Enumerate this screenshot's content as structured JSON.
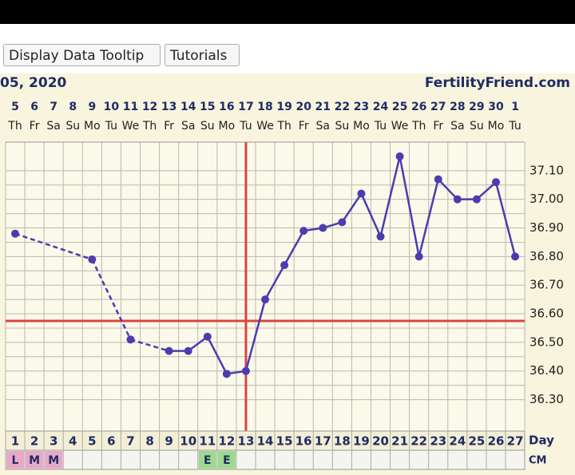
{
  "buttons": [
    "Display Data Tooltip",
    "Tutorials"
  ],
  "chart_data": {
    "type": "line",
    "title": "05, 2020",
    "site": "FertilityFriend.com",
    "dates": [
      "5",
      "6",
      "7",
      "8",
      "9",
      "10",
      "11",
      "12",
      "13",
      "14",
      "15",
      "16",
      "17",
      "18",
      "19",
      "20",
      "21",
      "22",
      "23",
      "24",
      "25",
      "26",
      "27",
      "28",
      "29",
      "30",
      "1"
    ],
    "weekdays": [
      "Th",
      "Fr",
      "Sa",
      "Su",
      "Mo",
      "Tu",
      "We",
      "Th",
      "Fr",
      "Sa",
      "Su",
      "Mo",
      "Tu",
      "We",
      "Th",
      "Fr",
      "Sa",
      "Su",
      "Mo",
      "Tu",
      "We",
      "Th",
      "Fr",
      "Sa",
      "Su",
      "Mo",
      "Tu"
    ],
    "categories": [
      "1",
      "2",
      "3",
      "4",
      "5",
      "6",
      "7",
      "8",
      "9",
      "10",
      "11",
      "12",
      "13",
      "14",
      "15",
      "16",
      "17",
      "18",
      "19",
      "20",
      "21",
      "22",
      "23",
      "24",
      "25",
      "26",
      "27"
    ],
    "values": [
      36.88,
      null,
      null,
      null,
      36.79,
      null,
      36.51,
      null,
      36.47,
      36.47,
      36.52,
      36.39,
      36.4,
      36.65,
      36.77,
      36.89,
      36.9,
      36.92,
      37.02,
      36.87,
      37.15,
      36.8,
      37.07,
      37.0,
      37.0,
      37.06,
      36.8
    ],
    "color": "#4b3cb0",
    "cm": [
      "L",
      "M",
      "M",
      null,
      null,
      null,
      null,
      null,
      null,
      null,
      "E",
      "E",
      null,
      null,
      null,
      null,
      null,
      null,
      null,
      null,
      null,
      null,
      null,
      null,
      null,
      null,
      null
    ],
    "day_label": "Day",
    "cm_label": "CM",
    "coverline": 36.575,
    "ovulation_index": 12,
    "ylim": [
      36.19,
      37.2
    ],
    "yticks": [
      {
        "value": 36.3,
        "label": "36.30"
      },
      {
        "value": 36.4,
        "label": "36.40"
      },
      {
        "value": 36.5,
        "label": "36.50"
      },
      {
        "value": 36.6,
        "label": "36.60"
      },
      {
        "value": 36.7,
        "label": "36.70"
      },
      {
        "value": 36.8,
        "label": "36.80"
      },
      {
        "value": 36.9,
        "label": "36.90"
      },
      {
        "value": 37.0,
        "label": "37.00"
      },
      {
        "value": 37.1,
        "label": "37.10"
      }
    ],
    "grid": true
  }
}
